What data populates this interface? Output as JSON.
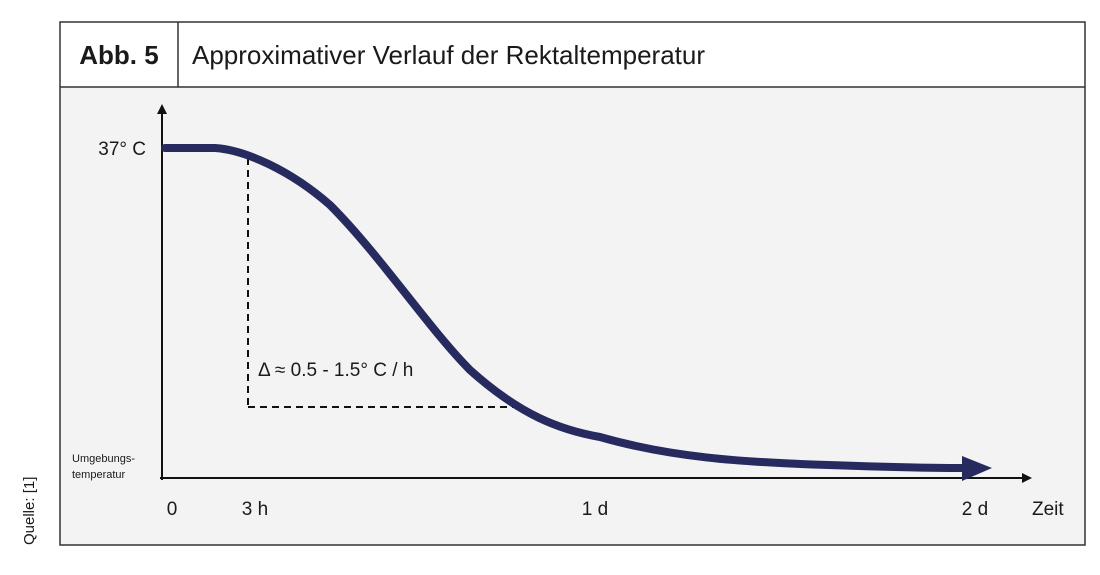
{
  "header": {
    "label": "Abb. 5",
    "title": "Approximativer Verlauf der Rektaltemperatur"
  },
  "source": "Quelle: [1]",
  "diagram": {
    "y_top_label": "37° C",
    "y_bottom_label": [
      "Umgebungs-",
      "temperatur"
    ],
    "x_labels": [
      "0",
      "3 h",
      "1 d",
      "2 d"
    ],
    "x_axis_label": "Zeit",
    "annotation": "Δ ≈ 0.5 - 1.5° C / h"
  }
}
